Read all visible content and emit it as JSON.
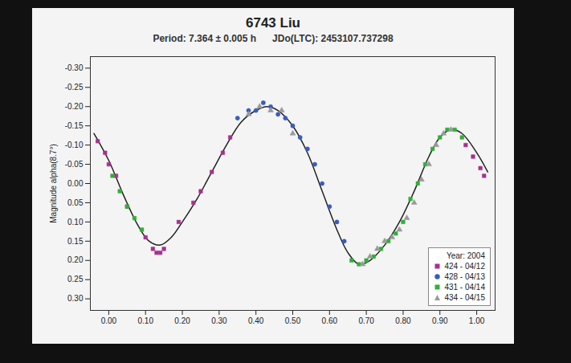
{
  "chart_data": {
    "type": "scatter",
    "title": "6743 Liu",
    "subtitle": [
      "Period: 7.364 ± 0.005 h",
      "JDo(LTC): 2453107.737298"
    ],
    "y_label": "Magnitude alpha(8.7°)",
    "xlim": [
      -0.05,
      1.05
    ],
    "xticks": [
      {
        "value": 0,
        "label": "0.00"
      },
      {
        "value": 0.1,
        "label": "0.10"
      },
      {
        "value": 0.2,
        "label": "0.20"
      },
      {
        "value": 0.3,
        "label": "0.30"
      },
      {
        "value": 0.4,
        "label": "0.40"
      },
      {
        "value": 0.5,
        "label": "0.50"
      },
      {
        "value": 0.6,
        "label": "0.60"
      },
      {
        "value": 0.7,
        "label": "0.70"
      },
      {
        "value": 0.8,
        "label": "0.80"
      },
      {
        "value": 0.9,
        "label": "0.90"
      },
      {
        "value": 1,
        "label": "1.00"
      }
    ],
    "ylim": [
      0.33,
      -0.33
    ],
    "yticks": [
      {
        "value": -0.3,
        "label": "-0.30"
      },
      {
        "value": -0.25,
        "label": "-0.25"
      },
      {
        "value": -0.2,
        "label": "-0.20"
      },
      {
        "value": -0.15,
        "label": "-0.15"
      },
      {
        "value": -0.1,
        "label": "-0.10"
      },
      {
        "value": -0.05,
        "label": "-0.05"
      },
      {
        "value": 0,
        "label": "0.00"
      },
      {
        "value": 0.05,
        "label": "0.05"
      },
      {
        "value": 0.1,
        "label": "0.10"
      },
      {
        "value": 0.15,
        "label": "0.15"
      },
      {
        "value": 0.2,
        "label": "0.20"
      },
      {
        "value": 0.25,
        "label": "0.25"
      },
      {
        "value": 0.3,
        "label": "0.30"
      }
    ],
    "grid": false,
    "legend": "lower right",
    "legend_title": "Year: 2004",
    "series": [
      {
        "name": "424 - 04/12",
        "color": "#a8308e",
        "marker": "square",
        "x": [
          -0.03,
          -0.01,
          0.0,
          0.02,
          0.05,
          0.1,
          0.12,
          0.13,
          0.14,
          0.15,
          0.19,
          0.23,
          0.25,
          0.28,
          0.31,
          0.33,
          0.97,
          0.99,
          1.01,
          1.02
        ],
        "values": [
          -0.11,
          -0.08,
          -0.05,
          -0.02,
          0.06,
          0.14,
          0.17,
          0.18,
          0.18,
          0.17,
          0.1,
          0.05,
          0.02,
          -0.03,
          -0.08,
          -0.12,
          -0.1,
          -0.07,
          -0.04,
          -0.02
        ]
      },
      {
        "name": "428 - 04/13",
        "color": "#3a5bbf",
        "marker": "circle",
        "x": [
          0.35,
          0.38,
          0.4,
          0.42,
          0.44,
          0.46,
          0.48,
          0.5,
          0.52,
          0.54,
          0.56,
          0.58,
          0.6,
          0.62,
          0.64
        ],
        "values": [
          -0.17,
          -0.19,
          -0.19,
          -0.21,
          -0.2,
          -0.18,
          -0.17,
          -0.15,
          -0.12,
          -0.09,
          -0.05,
          0.0,
          0.06,
          0.1,
          0.15
        ]
      },
      {
        "name": "431 - 04/14",
        "color": "#2fb034",
        "marker": "square",
        "x": [
          0.01,
          0.03,
          0.05,
          0.07,
          0.09,
          0.66,
          0.68,
          0.7,
          0.72,
          0.74,
          0.76,
          0.78,
          0.8,
          0.82,
          0.84,
          0.86,
          0.88,
          0.9,
          0.92,
          0.94,
          0.96
        ],
        "values": [
          -0.02,
          0.02,
          0.06,
          0.09,
          0.12,
          0.2,
          0.21,
          0.2,
          0.19,
          0.17,
          0.15,
          0.13,
          0.1,
          0.04,
          0.0,
          -0.05,
          -0.09,
          -0.12,
          -0.14,
          -0.14,
          -0.12
        ]
      },
      {
        "name": "434 - 04/15",
        "color": "#9a9a9a",
        "marker": "triangle",
        "x": [
          0.38,
          0.41,
          0.44,
          0.47,
          0.5,
          0.69,
          0.71,
          0.73,
          0.75,
          0.77,
          0.79,
          0.81,
          0.83,
          0.85,
          0.87,
          0.89,
          0.91,
          0.93
        ],
        "values": [
          -0.18,
          -0.2,
          -0.19,
          -0.19,
          -0.13,
          0.21,
          0.19,
          0.17,
          0.15,
          0.14,
          0.12,
          0.09,
          0.05,
          -0.01,
          -0.05,
          -0.1,
          -0.13,
          -0.14
        ]
      }
    ],
    "fit": {
      "type": "line",
      "color": "#222222",
      "line_style": "solid",
      "x": [
        -0.04,
        0.0,
        0.04,
        0.08,
        0.11,
        0.14,
        0.17,
        0.2,
        0.24,
        0.28,
        0.32,
        0.36,
        0.4,
        0.43,
        0.46,
        0.5,
        0.54,
        0.58,
        0.62,
        0.65,
        0.68,
        0.71,
        0.75,
        0.79,
        0.83,
        0.87,
        0.9,
        0.93,
        0.96,
        1.0,
        1.03
      ],
      "values": [
        -0.13,
        -0.06,
        0.03,
        0.11,
        0.15,
        0.16,
        0.14,
        0.1,
        0.04,
        -0.03,
        -0.1,
        -0.16,
        -0.19,
        -0.2,
        -0.19,
        -0.15,
        -0.08,
        0.02,
        0.12,
        0.18,
        0.21,
        0.2,
        0.16,
        0.1,
        0.02,
        -0.07,
        -0.12,
        -0.14,
        -0.13,
        -0.08,
        -0.03
      ]
    }
  }
}
